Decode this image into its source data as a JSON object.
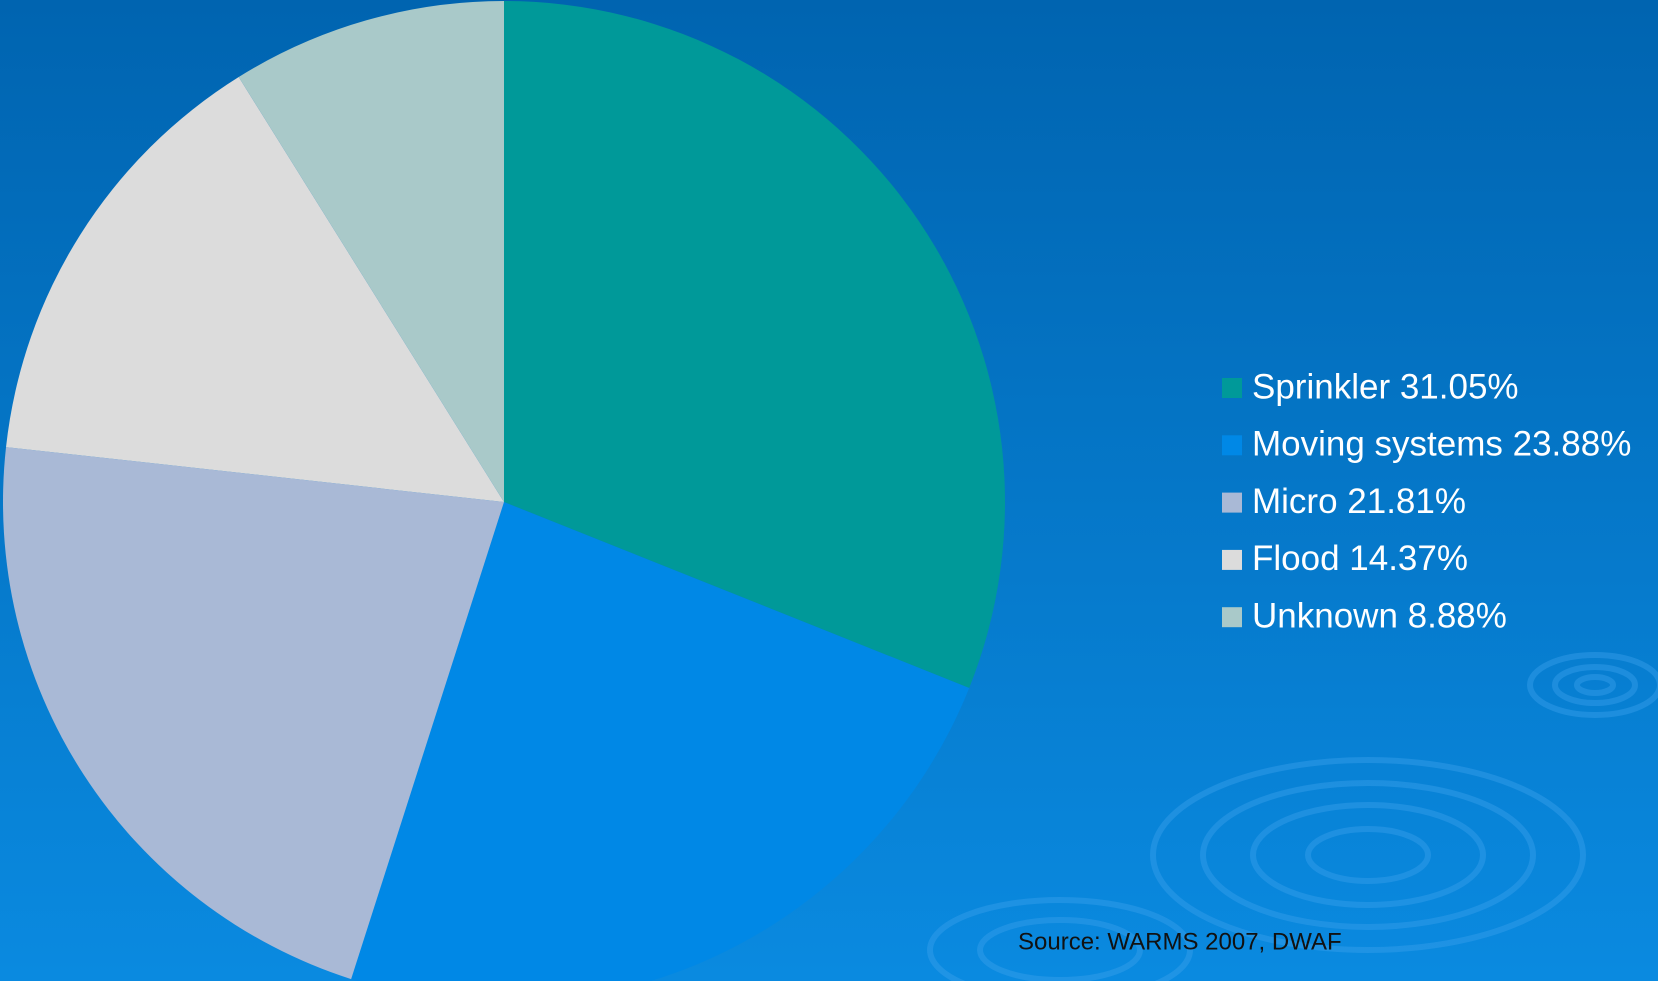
{
  "chart_data": {
    "type": "pie",
    "categories": [
      "Sprinkler 31.05%",
      "Moving systems 23.88%",
      "Micro 21.81%",
      "Flood 14.37%",
      "Unknown 8.88%"
    ],
    "values": [
      31.05,
      23.88,
      21.81,
      14.37,
      8.88
    ],
    "colors": [
      "#009999",
      "#0088e6",
      "#a9b9d6",
      "#dcdcdc",
      "#a9c9c9"
    ],
    "source": "Source: WARMS 2007, DWAF"
  }
}
